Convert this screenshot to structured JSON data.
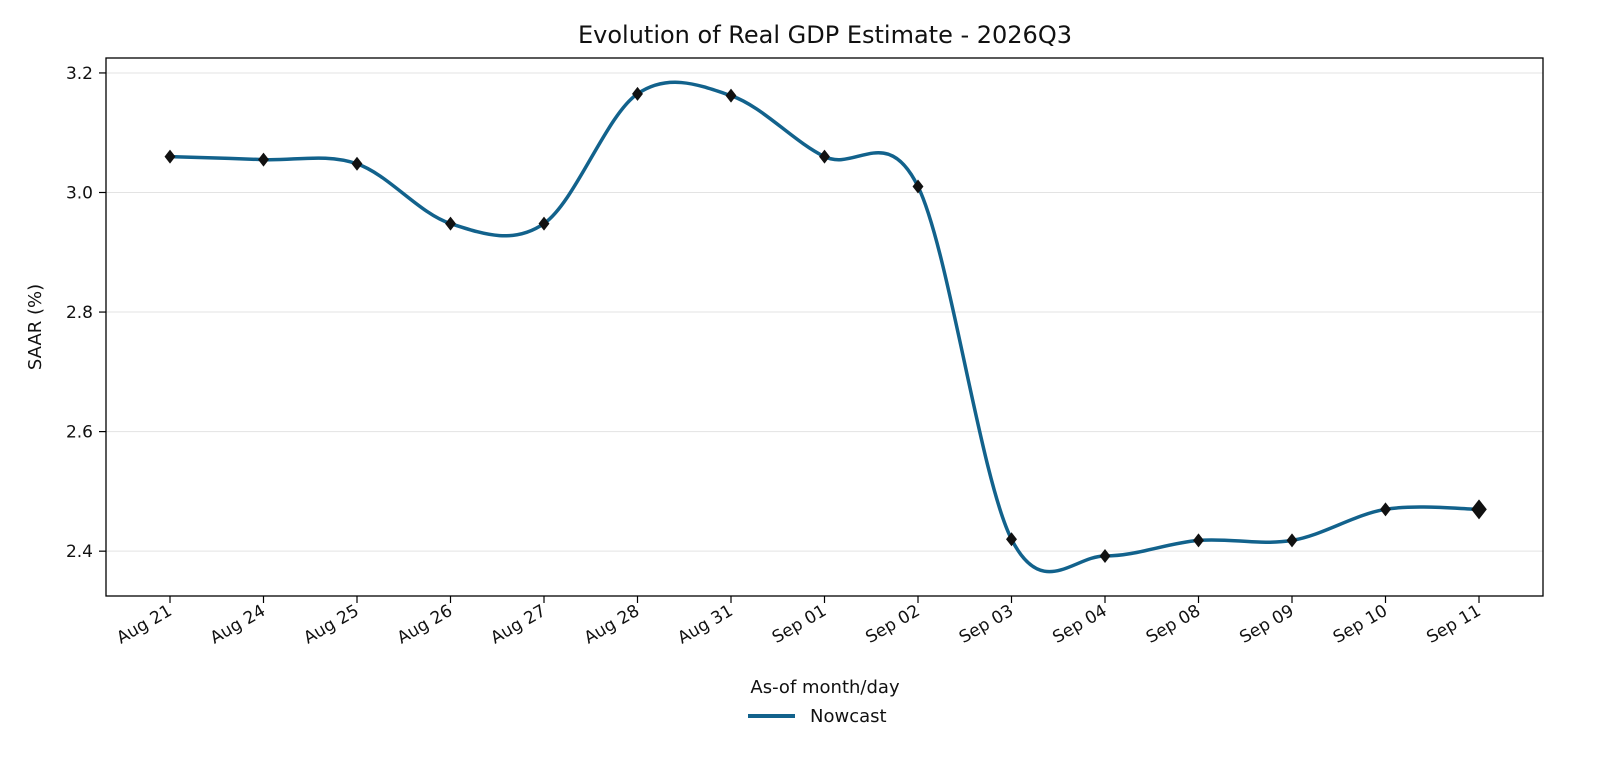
{
  "chart_data": {
    "type": "line",
    "title": "Evolution of Real GDP Estimate - 2026Q3",
    "xlabel": "As-of month/day",
    "ylabel": "SAAR (%)",
    "ylim": [
      2.325,
      3.225
    ],
    "yticks": [
      2.4,
      2.6,
      2.8,
      3.0,
      3.2
    ],
    "ytick_labels": [
      "2.4",
      "2.6",
      "2.8",
      "3.0",
      "3.2"
    ],
    "grid": "horizontal",
    "legend_position": "bottom-center",
    "categories": [
      "Aug 21",
      "Aug 24",
      "Aug 25",
      "Aug 26",
      "Aug 27",
      "Aug 28",
      "Aug 31",
      "Sep 01",
      "Sep 02",
      "Sep 03",
      "Sep 04",
      "Sep 08",
      "Sep 09",
      "Sep 10",
      "Sep 11"
    ],
    "series": [
      {
        "name": "Nowcast",
        "color": "#12628c",
        "marker": "diamond",
        "marker_color": "#111111",
        "values": [
          3.06,
          3.055,
          3.048,
          2.948,
          2.948,
          3.165,
          3.162,
          3.06,
          3.01,
          2.42,
          2.392,
          2.418,
          2.418,
          2.47,
          2.47
        ]
      }
    ]
  }
}
